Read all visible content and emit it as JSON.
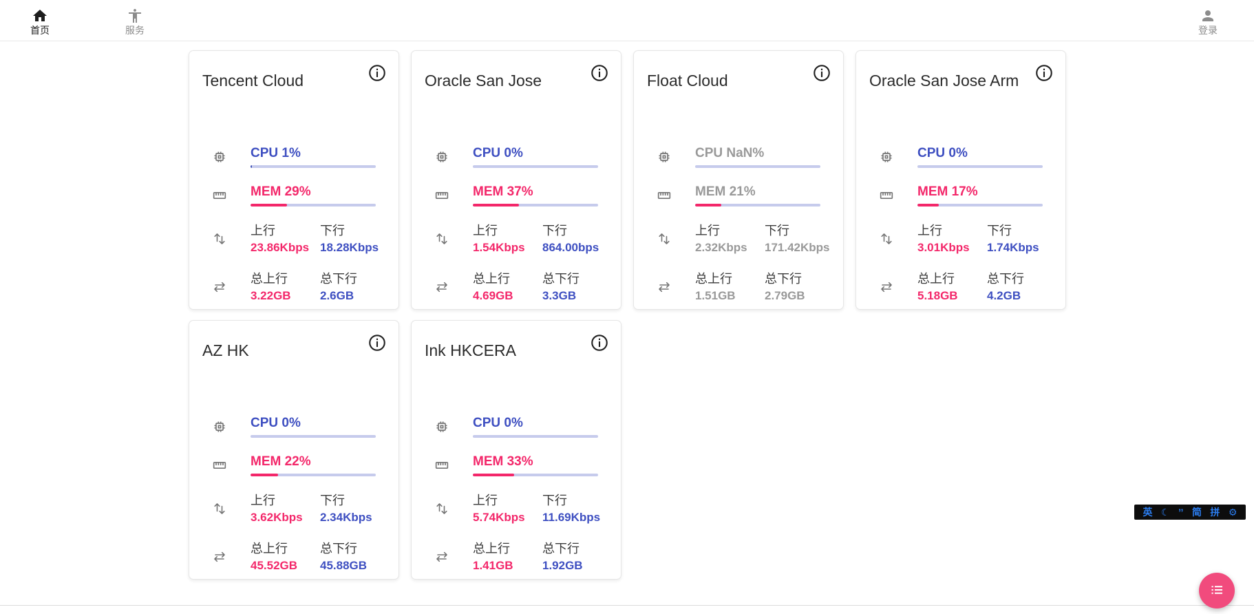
{
  "nav": {
    "home": {
      "label": "首页",
      "icon": "home-icon",
      "active": true
    },
    "services": {
      "label": "服务",
      "icon": "accessibility-icon",
      "active": false
    },
    "login": {
      "label": "登录",
      "icon": "person-icon",
      "active": false
    }
  },
  "labels": {
    "up": "上行",
    "down": "下行",
    "total_up": "总上行",
    "total_down": "总下行"
  },
  "cards": [
    {
      "title": "Tencent Cloud",
      "cpu_label": "CPU 1%",
      "cpu_pct": 1,
      "mem_label": "MEM 29%",
      "mem_pct": 29,
      "up": "23.86Kbps",
      "down": "18.28Kbps",
      "total_up": "3.22GB",
      "total_down": "2.6GB",
      "offline": false
    },
    {
      "title": "Oracle San Jose",
      "cpu_label": "CPU 0%",
      "cpu_pct": 0,
      "mem_label": "MEM 37%",
      "mem_pct": 37,
      "up": "1.54Kbps",
      "down": "864.00bps",
      "total_up": "4.69GB",
      "total_down": "3.3GB",
      "offline": false
    },
    {
      "title": "Float Cloud",
      "cpu_label": "CPU NaN%",
      "cpu_pct": null,
      "mem_label": "MEM 21%",
      "mem_pct": 21,
      "up": "2.32Kbps",
      "down": "171.42Kbps",
      "total_up": "1.51GB",
      "total_down": "2.79GB",
      "offline": true
    },
    {
      "title": "Oracle San Jose Arm",
      "cpu_label": "CPU 0%",
      "cpu_pct": 0,
      "mem_label": "MEM 17%",
      "mem_pct": 17,
      "up": "3.01Kbps",
      "down": "1.74Kbps",
      "total_up": "5.18GB",
      "total_down": "4.2GB",
      "offline": false
    },
    {
      "title": "AZ HK",
      "cpu_label": "CPU 0%",
      "cpu_pct": 0,
      "mem_label": "MEM 22%",
      "mem_pct": 22,
      "up": "3.62Kbps",
      "down": "2.34Kbps",
      "total_up": "45.52GB",
      "total_down": "45.88GB",
      "offline": false
    },
    {
      "title": "Ink HKCERA",
      "cpu_label": "CPU 0%",
      "cpu_pct": 0,
      "mem_label": "MEM 33%",
      "mem_pct": 33,
      "up": "5.74Kbps",
      "down": "11.69Kbps",
      "total_up": "1.41GB",
      "total_down": "1.92GB",
      "offline": false
    }
  ],
  "card_icons": {
    "cpu": "chip-icon",
    "mem": "ruler-icon",
    "net": "up-down-arrows-icon",
    "total": "swap-horizontal-icon",
    "info": "info-icon"
  },
  "ime": {
    "items": [
      "英",
      "☾",
      "’’",
      "简",
      "拼",
      "⚙"
    ]
  },
  "fab": {
    "icon": "bulleted-list-icon"
  },
  "colors": {
    "pink": "#f3276a",
    "indigo": "#3e4fc1",
    "cpu_bar": "#3f51b5",
    "bar_track": "#c6cbec",
    "offline_gray": "#999999",
    "fab_pink": "#f14b7d",
    "ime_blue": "#2b7df0"
  }
}
